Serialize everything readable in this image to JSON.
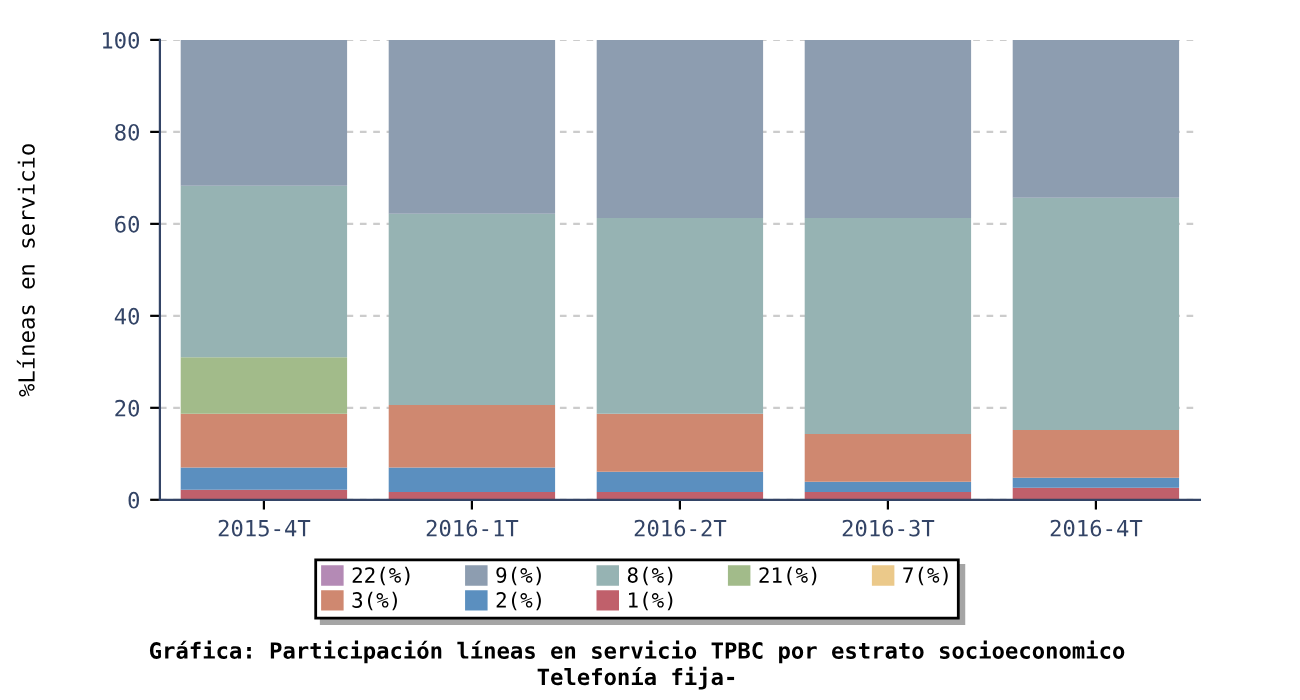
{
  "chart_data": {
    "type": "bar",
    "stacked": true,
    "title": "Gráfica: Participación líneas en servicio TPBC por estrato socioeconomico\nTelefonía fija-",
    "ylabel": "%Líneas en servicio",
    "categories": [
      "2015-4T",
      "2016-1T",
      "2016-2T",
      "2016-3T",
      "2016-4T"
    ],
    "series": [
      {
        "name": "1(%)",
        "color": "#c0606b",
        "values": [
          2.2,
          1.7,
          1.7,
          1.7,
          2.6
        ]
      },
      {
        "name": "2(%)",
        "color": "#5b8fbf",
        "values": [
          4.8,
          5.3,
          4.4,
          2.2,
          2.2
        ]
      },
      {
        "name": "3(%)",
        "color": "#cf8870",
        "values": [
          11.7,
          13.6,
          12.6,
          10.4,
          10.4
        ]
      },
      {
        "name": "7(%)",
        "color": "#ebc98a",
        "values": [
          0,
          0,
          0,
          0,
          0
        ]
      },
      {
        "name": "21(%)",
        "color": "#a2bb8a",
        "values": [
          12.3,
          0,
          0,
          0,
          0
        ]
      },
      {
        "name": "8(%)",
        "color": "#96b3b3",
        "values": [
          37.3,
          41.6,
          42.6,
          47.0,
          50.5
        ]
      },
      {
        "name": "9(%)",
        "color": "#8d9db0",
        "values": [
          31.7,
          37.8,
          38.7,
          38.7,
          34.3
        ]
      },
      {
        "name": "22(%)",
        "color": "#b48ab5",
        "values": [
          0,
          0,
          0,
          0,
          0
        ]
      }
    ],
    "ylim": [
      0,
      100
    ],
    "yticks": [
      0,
      20,
      40,
      60,
      80,
      100
    ],
    "grid": "y",
    "legend": "bottom"
  }
}
